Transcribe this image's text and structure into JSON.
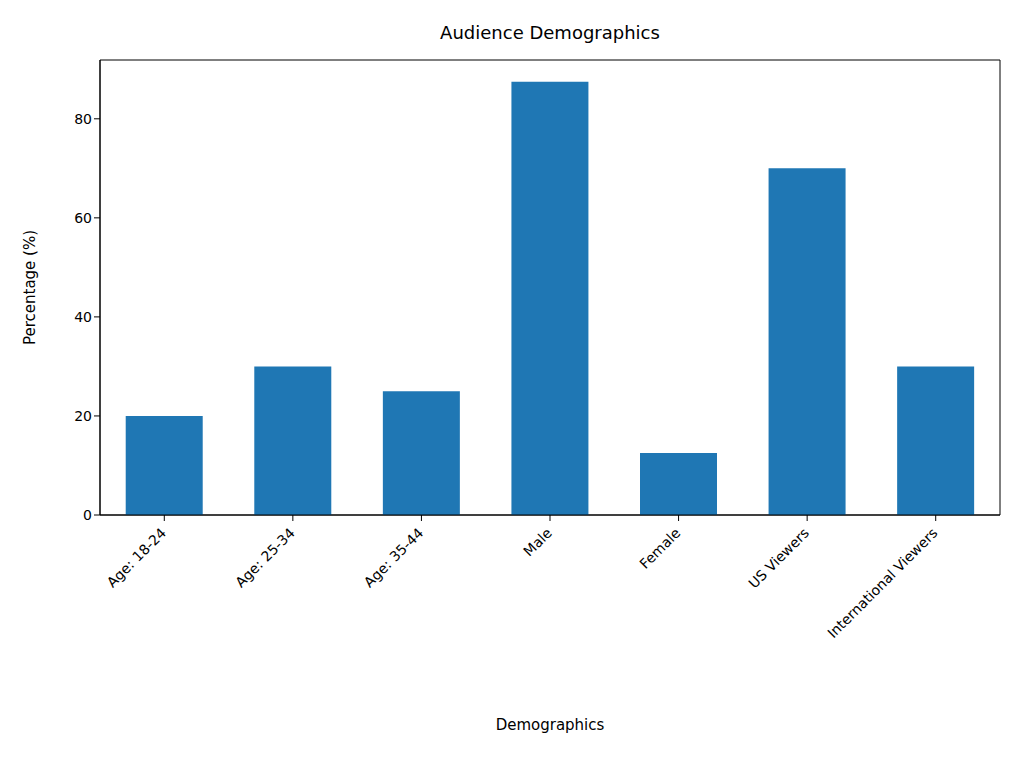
{
  "chart_data": {
    "type": "bar",
    "title": "Audience Demographics",
    "x_label": "Demographics",
    "y_label": "Percentage (%)",
    "categories": [
      "Age: 18-24",
      "Age: 25-34",
      "Age: 35-44",
      "Male",
      "Female",
      "US Viewers",
      "International Viewers"
    ],
    "values": [
      20,
      30,
      25,
      87.5,
      12.5,
      70,
      30
    ],
    "color": "#1f77b4",
    "ylim": [
      0,
      91.875
    ],
    "yticks": [
      0,
      20,
      40,
      60,
      80
    ],
    "grid": false
  }
}
